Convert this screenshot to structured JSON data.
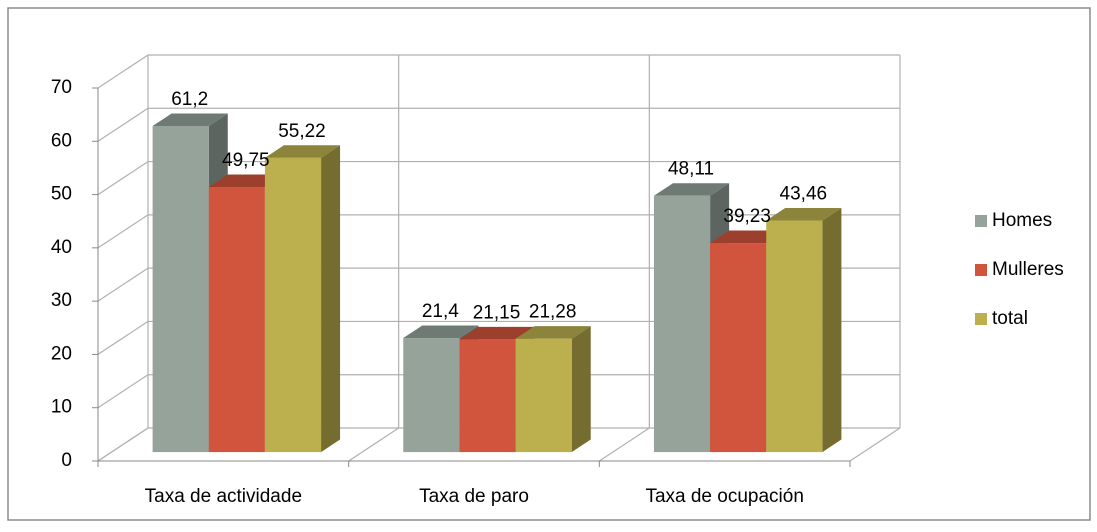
{
  "chart_data": {
    "type": "bar3d",
    "categories": [
      "Taxa de actividade",
      "Taxa de paro",
      "Taxa de ocupación"
    ],
    "series": [
      {
        "name": "Homes",
        "color": "#95a39b",
        "values": [
          61.2,
          21.4,
          48.11
        ],
        "value_labels": [
          "61,2",
          "21,4",
          "48,11"
        ]
      },
      {
        "name": "Mulleres",
        "color": "#d0553c",
        "values": [
          49.75,
          21.15,
          39.23
        ],
        "value_labels": [
          "49,75",
          "21,15",
          "39,23"
        ]
      },
      {
        "name": "total",
        "color": "#bcb04e",
        "values": [
          55.22,
          21.28,
          43.46
        ],
        "value_labels": [
          "55,22",
          "21,28",
          "43,46"
        ]
      }
    ],
    "ylim": [
      0,
      70
    ],
    "yticks": [
      0,
      10,
      20,
      30,
      40,
      50,
      60,
      70
    ],
    "grid": true,
    "legend": "right"
  }
}
